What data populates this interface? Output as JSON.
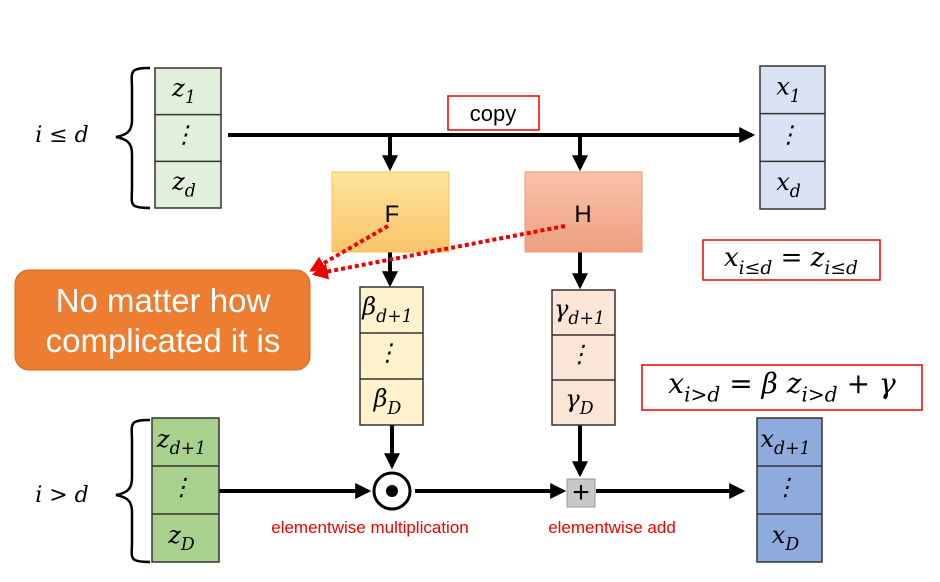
{
  "labels": {
    "top_condition": "i ≤ d",
    "bottom_condition": "i > d",
    "copy": "copy",
    "f": "F",
    "h": "H",
    "callout": [
      "No matter how",
      "complicated it is"
    ],
    "multiply": "elementwise multiplication",
    "add": "elementwise add",
    "plus": "+"
  },
  "cells": {
    "z_top": [
      [
        {
          "text": "z",
          "sub": "1"
        }
      ],
      [
        {
          "text": "⋮"
        }
      ],
      [
        {
          "text": "z",
          "sub": "d"
        }
      ]
    ],
    "x_top": [
      [
        {
          "text": "x",
          "sub": "1"
        }
      ],
      [
        {
          "text": "⋮"
        }
      ],
      [
        {
          "text": "x",
          "sub": "d"
        }
      ]
    ],
    "beta": [
      [
        {
          "text": "β",
          "sub": "d+1"
        }
      ],
      [
        {
          "text": "⋮"
        }
      ],
      [
        {
          "text": "β",
          "sub": "D"
        }
      ]
    ],
    "gamma": [
      [
        {
          "text": "γ",
          "sub": "d+1"
        }
      ],
      [
        {
          "text": "⋮"
        }
      ],
      [
        {
          "text": "γ",
          "sub": "D"
        }
      ]
    ],
    "z_bottom": [
      [
        {
          "text": "z",
          "sub": "d+1"
        }
      ],
      [
        {
          "text": "⋮"
        }
      ],
      [
        {
          "text": "z",
          "sub": "D"
        }
      ]
    ],
    "x_bottom": [
      [
        {
          "text": "x",
          "sub": "d+1"
        }
      ],
      [
        {
          "text": "⋮"
        }
      ],
      [
        {
          "text": "x",
          "sub": "D"
        }
      ]
    ]
  },
  "equations": [
    [
      {
        "text": "x",
        "sub": "i≤d"
      },
      {
        "text": " = "
      },
      {
        "text": "z",
        "sub": "i≤d"
      }
    ],
    [
      {
        "text": "x",
        "sub": "i>d"
      },
      {
        "text": " = β "
      },
      {
        "text": "z",
        "sub": "i>d"
      },
      {
        "text": " + γ"
      }
    ]
  ]
}
